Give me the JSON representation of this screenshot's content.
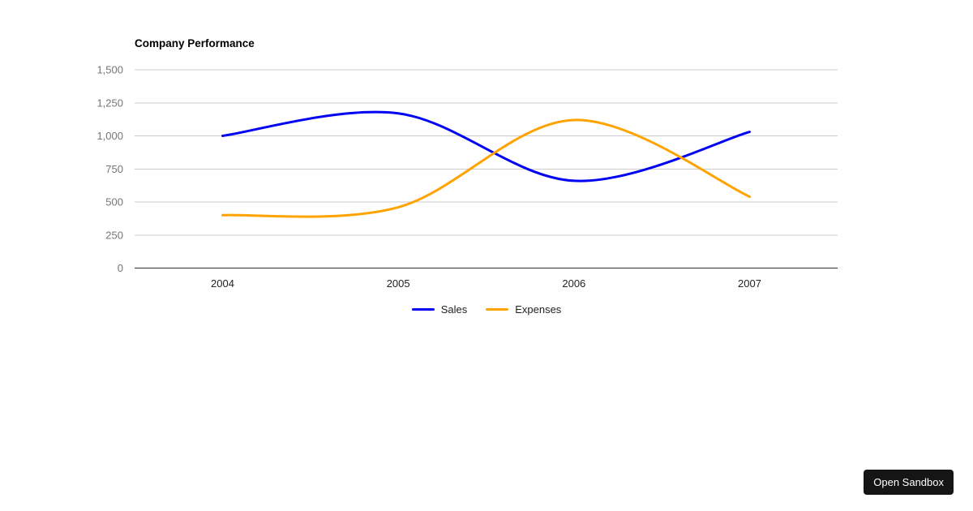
{
  "chart_data": {
    "type": "line",
    "title": "Company Performance",
    "categories": [
      "2004",
      "2005",
      "2006",
      "2007"
    ],
    "series": [
      {
        "name": "Sales",
        "color": "#0202f2",
        "values": [
          1000,
          1170,
          660,
          1030
        ]
      },
      {
        "name": "Expenses",
        "color": "#ffa300",
        "values": [
          400,
          460,
          1120,
          540
        ]
      }
    ],
    "xlabel": "",
    "ylabel": "",
    "ylim": [
      0,
      1500
    ],
    "ytick_step": 250,
    "ytick_labels": [
      "0",
      "250",
      "500",
      "750",
      "1,000",
      "1,250",
      "1,500"
    ],
    "grid": true,
    "curve": "smooth",
    "legend_position": "bottom",
    "style": {
      "grid_color": "#cccccc",
      "axis_line_color": "#333333",
      "ytick_color": "#757575",
      "xtick_color": "#222222",
      "title_color": "#000000",
      "legend_text_color": "#222222",
      "line_width": 3
    }
  },
  "sandbox_button": {
    "label": "Open Sandbox",
    "bg": "#151515",
    "text_color": "#ffffff"
  }
}
